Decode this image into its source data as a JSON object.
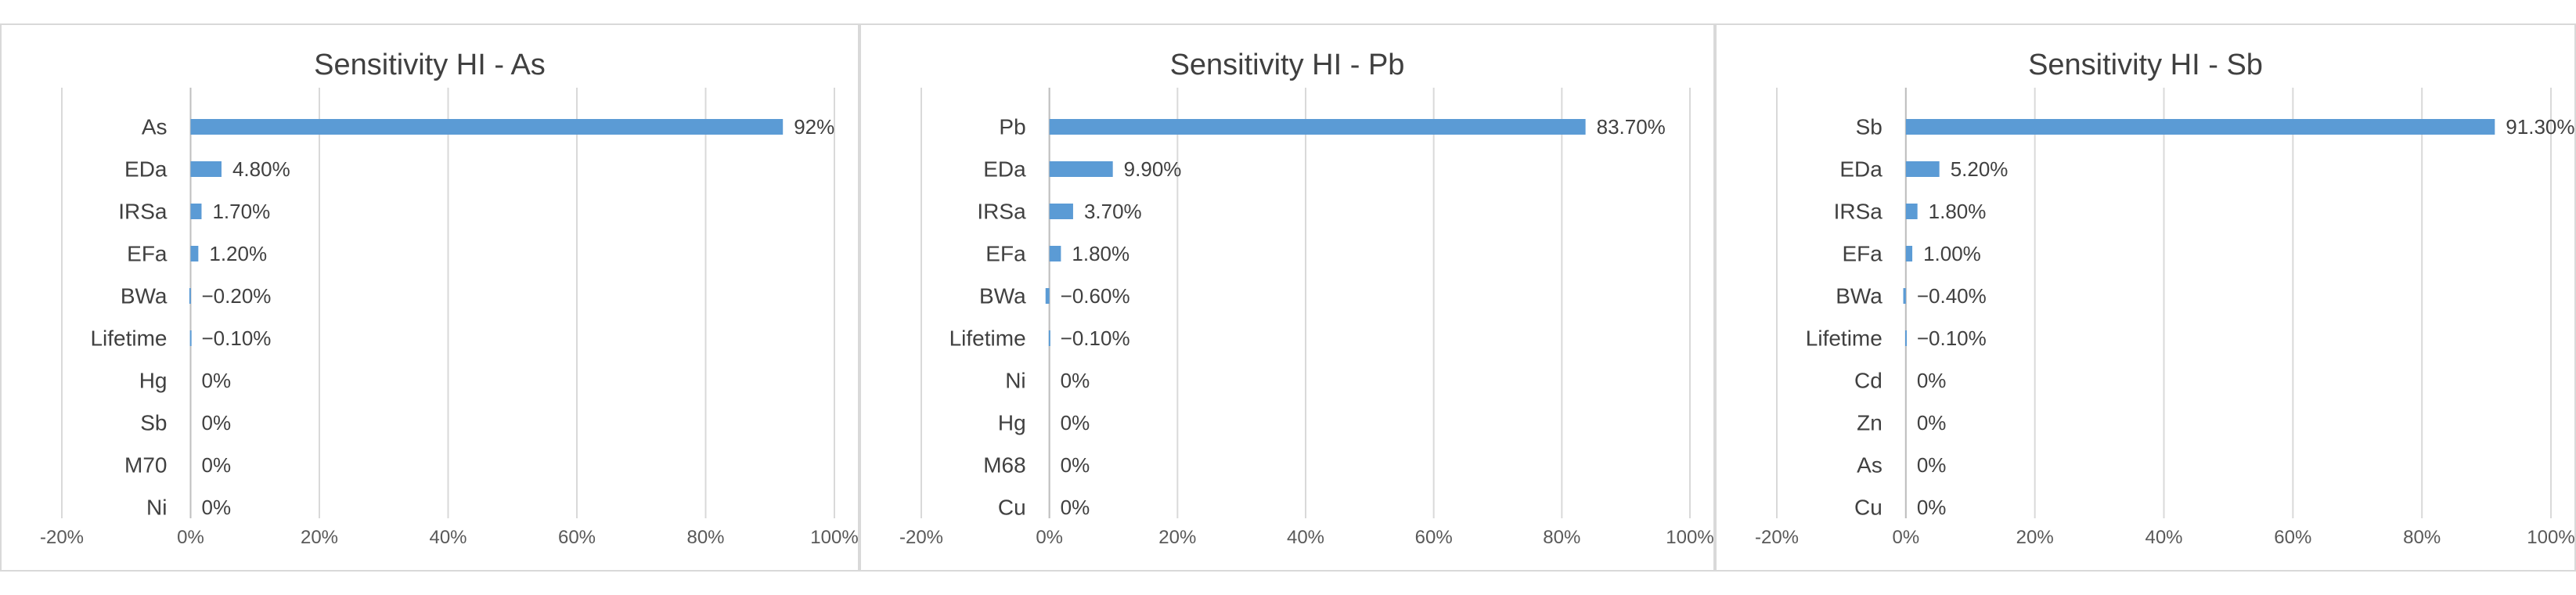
{
  "chart_data": [
    {
      "type": "bar",
      "orientation": "horizontal",
      "title": "Sensitivity HI - As",
      "categories": [
        "As",
        "EDa",
        "IRSa",
        "EFa",
        "BWa",
        "Lifetime",
        "Hg",
        "Sb",
        "M70",
        "Ni"
      ],
      "values": [
        92,
        4.8,
        1.7,
        1.2,
        -0.2,
        -0.1,
        0,
        0,
        0,
        0
      ],
      "value_labels": [
        "92%",
        "4.80%",
        "1.70%",
        "1.20%",
        "−0.20%",
        "−0.10%",
        "0%",
        "0%",
        "0%",
        "0%"
      ],
      "xlim": [
        -20,
        100
      ],
      "xticks": [
        "-20%",
        "0%",
        "20%",
        "40%",
        "60%",
        "80%",
        "100%"
      ],
      "xlabel": "",
      "ylabel": "",
      "grid": "vertical"
    },
    {
      "type": "bar",
      "orientation": "horizontal",
      "title": "Sensitivity HI - Pb",
      "categories": [
        "Pb",
        "EDa",
        "IRSa",
        "EFa",
        "BWa",
        "Lifetime",
        "Ni",
        "Hg",
        "M68",
        "Cu"
      ],
      "values": [
        83.7,
        9.9,
        3.7,
        1.8,
        -0.6,
        -0.1,
        0,
        0,
        0,
        0
      ],
      "value_labels": [
        "83.70%",
        "9.90%",
        "3.70%",
        "1.80%",
        "−0.60%",
        "−0.10%",
        "0%",
        "0%",
        "0%",
        "0%"
      ],
      "xlim": [
        -20,
        100
      ],
      "xticks": [
        "-20%",
        "0%",
        "20%",
        "40%",
        "60%",
        "80%",
        "100%"
      ],
      "xlabel": "",
      "ylabel": "",
      "grid": "vertical"
    },
    {
      "type": "bar",
      "orientation": "horizontal",
      "title": "Sensitivity HI - Sb",
      "categories": [
        "Sb",
        "EDa",
        "IRSa",
        "EFa",
        "BWa",
        "Lifetime",
        "Cd",
        "Zn",
        "As",
        "Cu"
      ],
      "values": [
        91.3,
        5.2,
        1.8,
        1.0,
        -0.4,
        -0.1,
        0,
        0,
        0,
        0
      ],
      "value_labels": [
        "91.30%",
        "5.20%",
        "1.80%",
        "1.00%",
        "−0.40%",
        "−0.10%",
        "0%",
        "0%",
        "0%",
        "0%"
      ],
      "xlim": [
        -20,
        100
      ],
      "xticks": [
        "-20%",
        "0%",
        "20%",
        "40%",
        "60%",
        "80%",
        "100%"
      ],
      "xlabel": "",
      "ylabel": "",
      "grid": "vertical"
    }
  ],
  "colors": {
    "bar": "#5b9bd5",
    "grid": "#d9d9d9",
    "text": "#404040",
    "panel_border": "#d9d9d9"
  }
}
